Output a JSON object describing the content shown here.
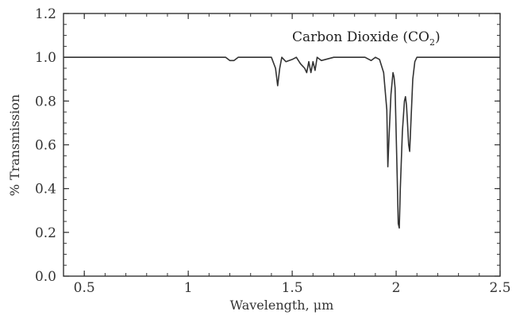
{
  "chart_data": {
    "type": "line",
    "title": "Carbon Dioxide (CO",
    "title_subscript": "2",
    "title_close": ")",
    "xlabel": "Wavelength, μm",
    "ylabel": "% Transmission",
    "xlim": [
      0.4,
      2.5
    ],
    "ylim": [
      0,
      1.2
    ],
    "x_ticks": [
      0.5,
      1,
      1.5,
      2,
      2.5
    ],
    "x_tick_labels": [
      "0.5",
      "1",
      "1.5",
      "2",
      "2.5"
    ],
    "y_ticks": [
      0,
      0.2,
      0.4,
      0.6,
      0.8,
      1.0,
      1.2
    ],
    "y_tick_labels": [
      "0.0",
      "0.2",
      "0.4",
      "0.6",
      "0.8",
      "1.0",
      "1.2"
    ],
    "grid": false,
    "line_color": "#333333",
    "series": [
      {
        "x": [
          0.4,
          1.18,
          1.2,
          1.22,
          1.24,
          1.3,
          1.4,
          1.42,
          1.43,
          1.44,
          1.45,
          1.47,
          1.5,
          1.52,
          1.54,
          1.56,
          1.57,
          1.58,
          1.59,
          1.6,
          1.61,
          1.62,
          1.64,
          1.7,
          1.85,
          1.88,
          1.9,
          1.92,
          1.94,
          1.955,
          1.96,
          1.965,
          1.975,
          1.985,
          1.99,
          1.995,
          2.005,
          2.01,
          2.015,
          2.02,
          2.03,
          2.04,
          2.045,
          2.05,
          2.055,
          2.06,
          2.065,
          2.07,
          2.08,
          2.09,
          2.1,
          2.12,
          2.15,
          2.2,
          2.5
        ],
        "y": [
          1.0,
          1.0,
          0.985,
          0.985,
          1.0,
          1.0,
          1.0,
          0.95,
          0.87,
          0.95,
          1.0,
          0.98,
          0.99,
          1.0,
          0.97,
          0.95,
          0.93,
          0.98,
          0.93,
          0.98,
          0.94,
          1.0,
          0.985,
          1.0,
          1.0,
          0.985,
          1.0,
          0.99,
          0.93,
          0.76,
          0.5,
          0.62,
          0.83,
          0.93,
          0.91,
          0.86,
          0.45,
          0.24,
          0.22,
          0.4,
          0.66,
          0.8,
          0.82,
          0.78,
          0.69,
          0.6,
          0.57,
          0.68,
          0.9,
          0.98,
          1.0,
          1.0,
          1.0,
          1.0,
          1.0
        ]
      }
    ]
  }
}
